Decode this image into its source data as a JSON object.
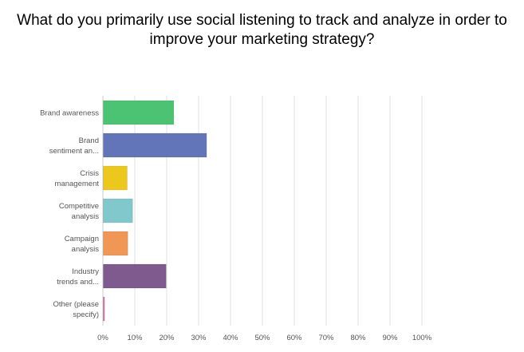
{
  "chart_data": {
    "type": "bar",
    "orientation": "horizontal",
    "title": "What do you primarily use social listening to track and analyze in order to improve your marketing strategy?",
    "categories": [
      [
        "Brand awareness"
      ],
      [
        "Brand",
        "sentiment an..."
      ],
      [
        "Crisis",
        "management"
      ],
      [
        "Competitive",
        "analysis"
      ],
      [
        "Campaign",
        "analysis"
      ],
      [
        "Industry",
        "trends and..."
      ],
      [
        "Other (please",
        "specify)"
      ]
    ],
    "values": [
      22.1,
      32.4,
      7.5,
      9.2,
      7.7,
      19.7,
      0.4
    ],
    "colors": [
      "#4bc373",
      "#6175b8",
      "#edc81c",
      "#81c8cc",
      "#f19756",
      "#7e5a8f",
      "#d76f9f"
    ],
    "xlim": [
      0,
      100
    ],
    "xticks": [
      "0%",
      "10%",
      "20%",
      "30%",
      "40%",
      "50%",
      "60%",
      "70%",
      "80%",
      "90%",
      "100%"
    ],
    "grid": true,
    "unit": "%"
  }
}
